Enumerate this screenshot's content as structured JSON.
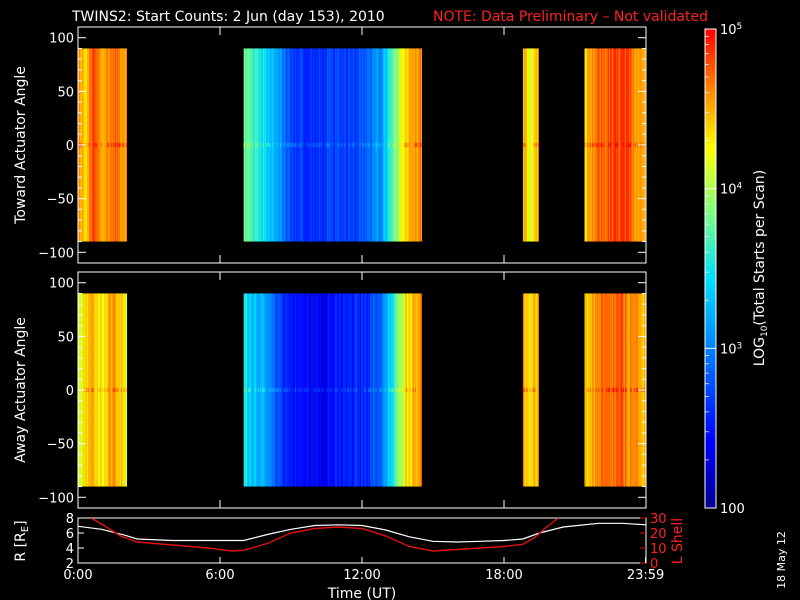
{
  "header": {
    "title": "TWINS2: Start Counts:  2 Jun (day 153), 2010",
    "note": "NOTE: Data Preliminary – Not validated"
  },
  "side_stamp": "18 May 12",
  "colors": {
    "note": "#ff2020",
    "axis": "#ffffff",
    "background": "#000000",
    "lshell": "#e01010"
  },
  "colorbar": {
    "label_base": "LOG",
    "label_sub": "10",
    "label_rest": "(Total Starts per Scan)",
    "min": 100,
    "max": 100000,
    "scale": "log",
    "tick_labels": [
      {
        "base": "100",
        "exp": ""
      },
      {
        "base": "10",
        "exp": "3"
      },
      {
        "base": "10",
        "exp": "4"
      },
      {
        "base": "10",
        "exp": "5"
      }
    ]
  },
  "chart_data": [
    {
      "type": "heatmap",
      "ylabel": "Toward Actuator Angle",
      "xlim": [
        0,
        24
      ],
      "ylim": [
        -110,
        110
      ],
      "yticks": [
        -100,
        -50,
        0,
        50,
        100
      ],
      "y_data_range": [
        -90,
        90
      ],
      "z_scale": "log",
      "z_range": [
        100,
        100000
      ],
      "data_segments_hours": [
        [
          0,
          2.05
        ],
        [
          7,
          14.5
        ],
        [
          18.8,
          19.45
        ],
        [
          21.4,
          24
        ]
      ],
      "log10_counts_profile": [
        {
          "t": 0.0,
          "z": 4.6
        },
        {
          "t": 0.3,
          "z": 4.3
        },
        {
          "t": 0.6,
          "z": 4.8
        },
        {
          "t": 1.0,
          "z": 4.5
        },
        {
          "t": 1.5,
          "z": 4.7
        },
        {
          "t": 2.0,
          "z": 4.6
        },
        {
          "t": 7.0,
          "z": 3.8
        },
        {
          "t": 7.6,
          "z": 3.6
        },
        {
          "t": 8.2,
          "z": 3.3
        },
        {
          "t": 9.0,
          "z": 2.7
        },
        {
          "t": 10.0,
          "z": 2.6
        },
        {
          "t": 11.0,
          "z": 2.7
        },
        {
          "t": 12.0,
          "z": 2.8
        },
        {
          "t": 12.8,
          "z": 3.1
        },
        {
          "t": 13.3,
          "z": 3.7
        },
        {
          "t": 13.8,
          "z": 4.4
        },
        {
          "t": 14.4,
          "z": 4.6
        },
        {
          "t": 18.8,
          "z": 4.5
        },
        {
          "t": 19.1,
          "z": 4.1
        },
        {
          "t": 19.45,
          "z": 4.6
        },
        {
          "t": 21.4,
          "z": 4.3
        },
        {
          "t": 22.0,
          "z": 4.7
        },
        {
          "t": 23.0,
          "z": 4.8
        },
        {
          "t": 24.0,
          "z": 4.5
        }
      ]
    },
    {
      "type": "heatmap",
      "ylabel": "Away Actuator Angle",
      "xlim": [
        0,
        24
      ],
      "ylim": [
        -110,
        110
      ],
      "yticks": [
        -100,
        -50,
        0,
        50,
        100
      ],
      "y_data_range": [
        -90,
        90
      ],
      "z_scale": "log",
      "z_range": [
        100,
        100000
      ],
      "data_segments_hours": [
        [
          0,
          2.05
        ],
        [
          7,
          14.5
        ],
        [
          18.8,
          19.45
        ],
        [
          21.4,
          24
        ]
      ],
      "log10_counts_profile": [
        {
          "t": 0.0,
          "z": 4.2
        },
        {
          "t": 0.5,
          "z": 4.5
        },
        {
          "t": 1.0,
          "z": 4.3
        },
        {
          "t": 1.5,
          "z": 4.6
        },
        {
          "t": 2.0,
          "z": 4.2
        },
        {
          "t": 7.0,
          "z": 3.5
        },
        {
          "t": 7.6,
          "z": 3.3
        },
        {
          "t": 8.2,
          "z": 2.9
        },
        {
          "t": 9.0,
          "z": 2.5
        },
        {
          "t": 10.0,
          "z": 2.4
        },
        {
          "t": 11.0,
          "z": 2.5
        },
        {
          "t": 12.0,
          "z": 2.6
        },
        {
          "t": 12.8,
          "z": 2.9
        },
        {
          "t": 13.3,
          "z": 3.5
        },
        {
          "t": 13.8,
          "z": 4.3
        },
        {
          "t": 14.4,
          "z": 4.6
        },
        {
          "t": 18.8,
          "z": 4.6
        },
        {
          "t": 19.1,
          "z": 4.2
        },
        {
          "t": 19.45,
          "z": 4.6
        },
        {
          "t": 21.4,
          "z": 4.4
        },
        {
          "t": 22.0,
          "z": 4.6
        },
        {
          "t": 23.0,
          "z": 4.7
        },
        {
          "t": 24.0,
          "z": 4.4
        }
      ]
    },
    {
      "type": "line",
      "xlabel": "Time (UT)",
      "xlim": [
        0,
        24
      ],
      "xticks": [
        0,
        6,
        12,
        18,
        23.983
      ],
      "xtick_labels": [
        "0:00",
        "6:00",
        "12:00",
        "18:00",
        "23:59"
      ],
      "ylabel_left_base": "R [R",
      "ylabel_left_sub": "E",
      "ylabel_left_rest": "]",
      "ylim": [
        2,
        8
      ],
      "yticks": [
        2,
        4,
        6,
        8
      ],
      "ylabel_right": "L Shell",
      "y2lim": [
        0,
        30
      ],
      "y2ticks": [
        0,
        10,
        20,
        30
      ],
      "series": [
        {
          "axis": "left",
          "color": "#ffffff",
          "x": [
            0,
            1,
            2,
            2.5,
            4,
            6,
            7,
            8,
            9,
            10,
            11,
            12,
            13,
            14,
            15,
            16,
            17,
            18,
            18.8,
            19.5,
            20.5,
            22,
            23,
            24
          ],
          "y": [
            6.9,
            6.5,
            5.7,
            5.2,
            5.0,
            5.0,
            5.0,
            5.8,
            6.5,
            7.0,
            7.1,
            7.0,
            6.4,
            5.5,
            4.9,
            4.8,
            4.9,
            5.0,
            5.2,
            6.0,
            6.8,
            7.3,
            7.3,
            7.1
          ]
        },
        {
          "axis": "right",
          "color": "#e01010",
          "x": [
            0.55,
            1.1,
            1.8,
            2.5,
            4,
            5.5,
            6.5,
            7,
            8,
            9,
            10,
            11,
            12,
            13,
            14,
            15,
            16,
            17,
            18,
            18.8,
            19.3,
            19.8,
            20.3
          ],
          "y": [
            30,
            25,
            18,
            14,
            12,
            10,
            8,
            8.5,
            13,
            20,
            23,
            24,
            23,
            18,
            11,
            8,
            9,
            10,
            11,
            12.5,
            17,
            24,
            30
          ]
        }
      ]
    }
  ]
}
